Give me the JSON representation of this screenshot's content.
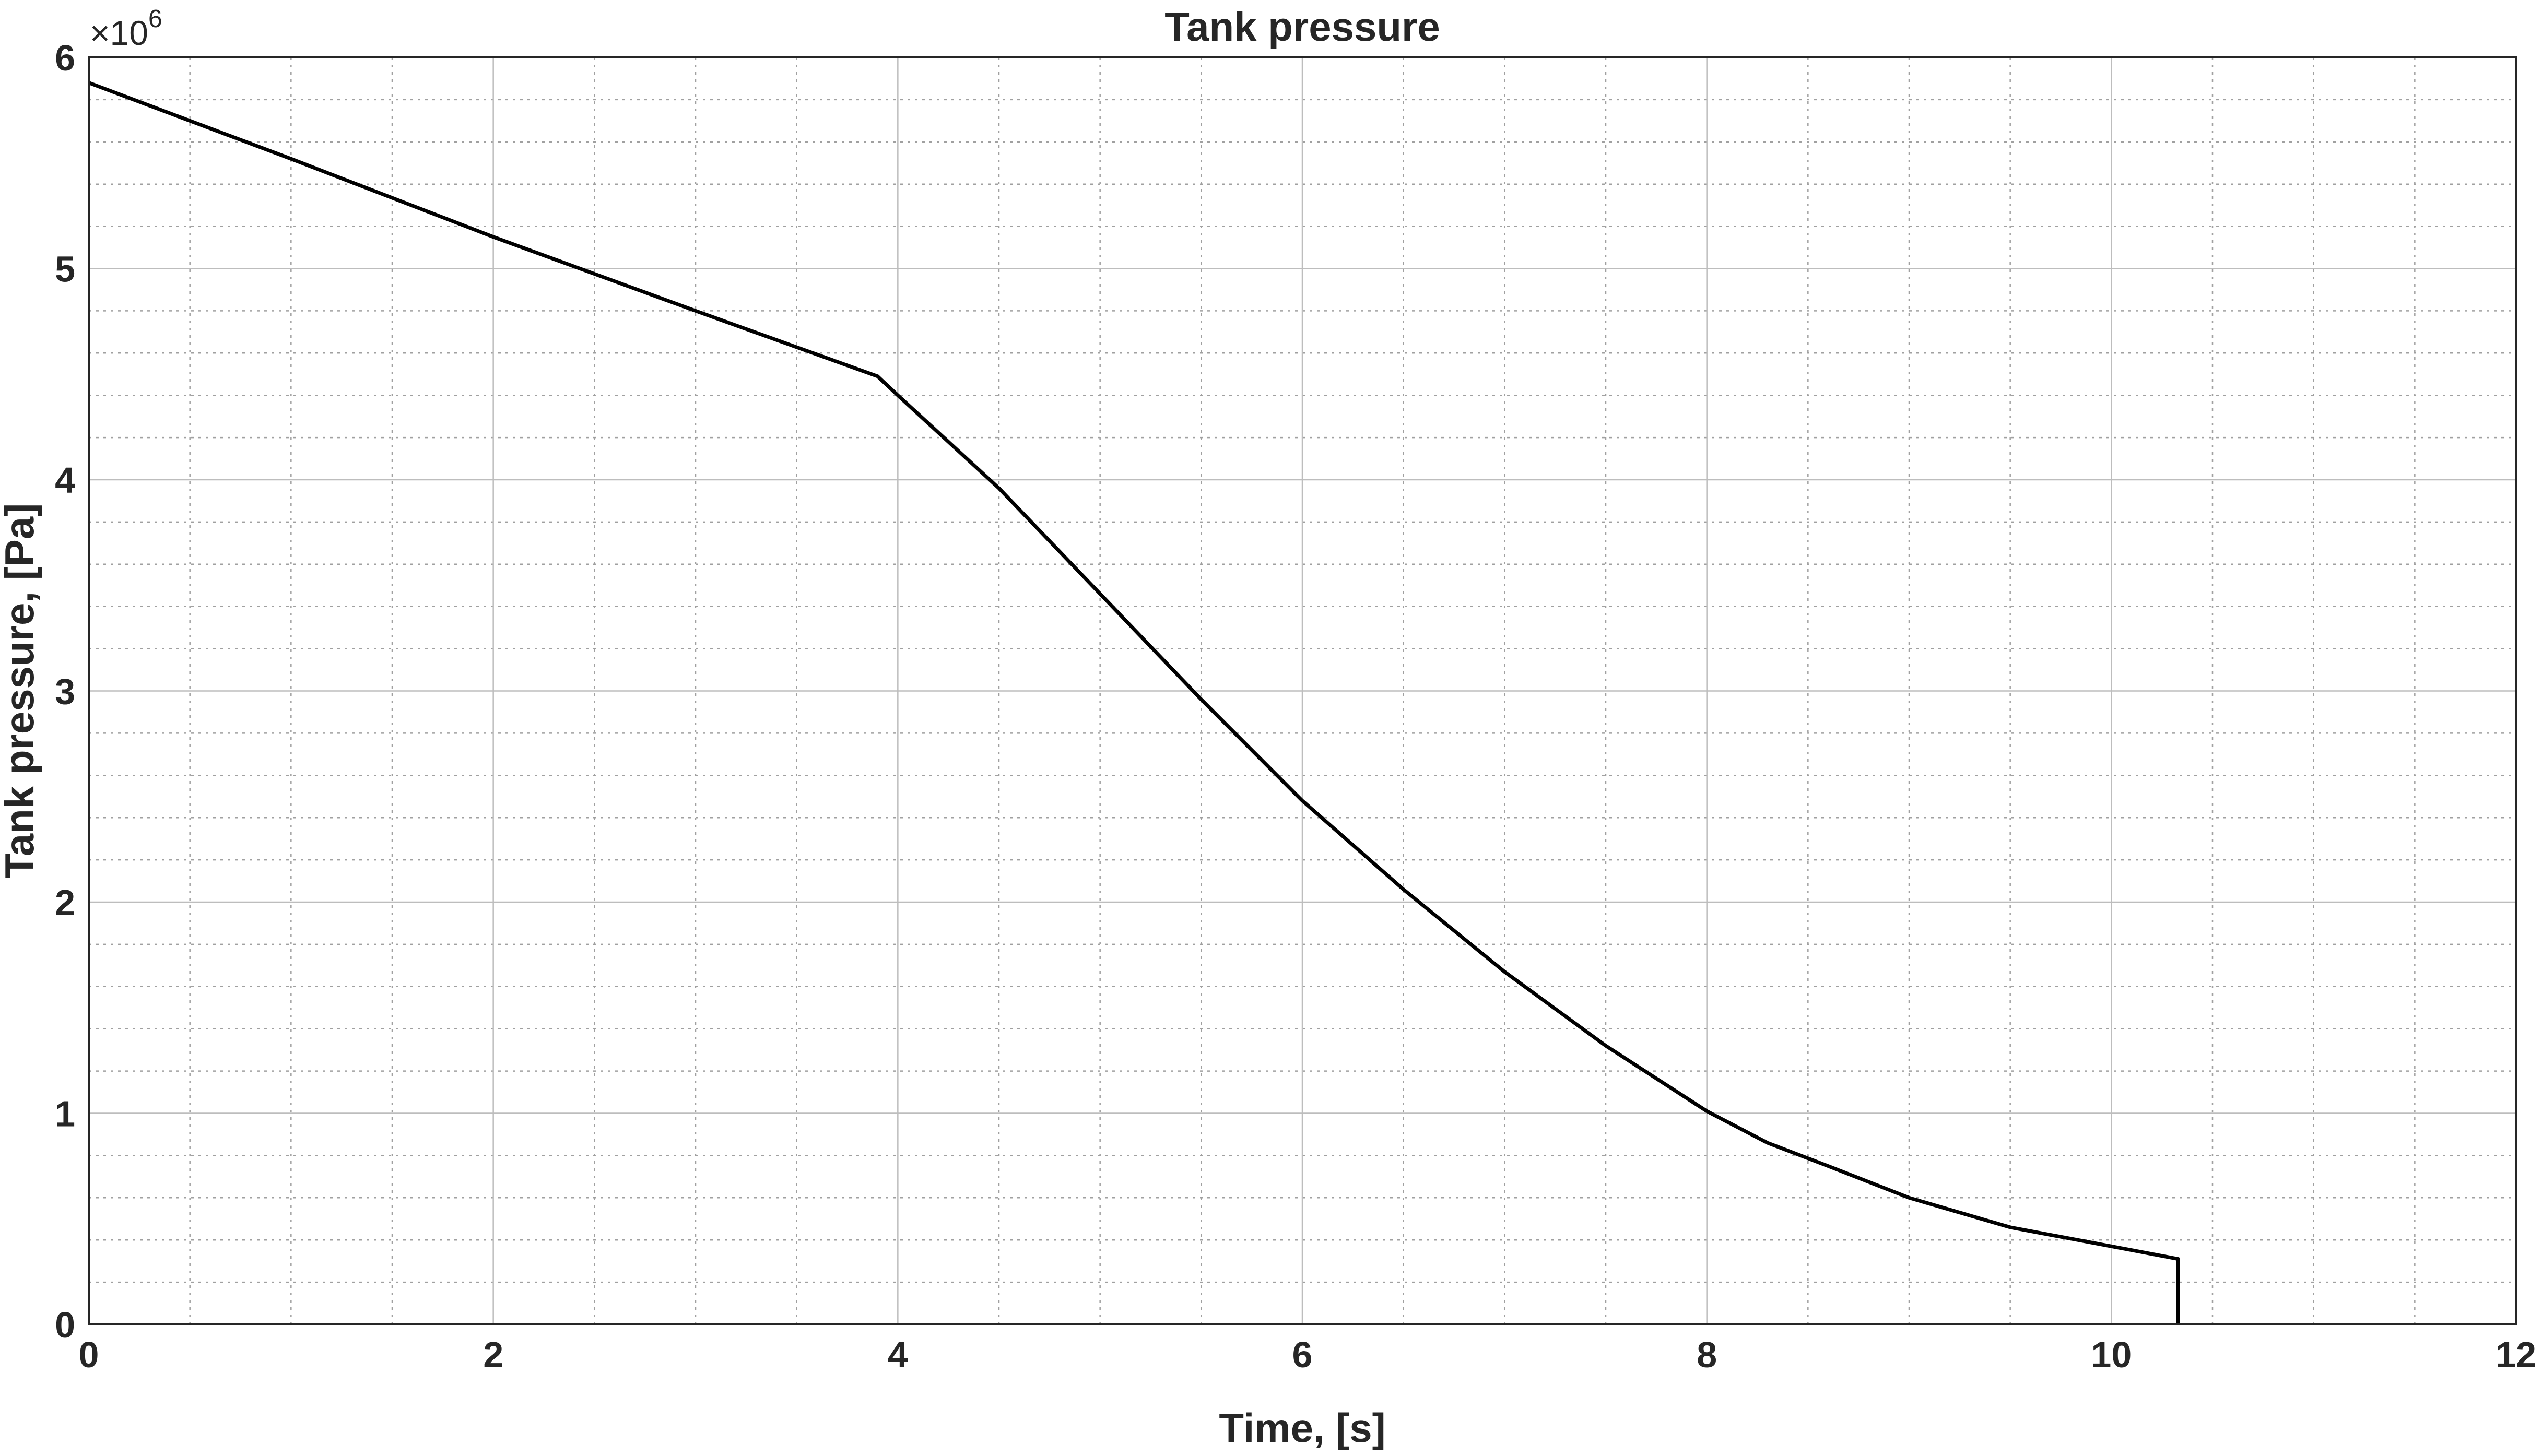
{
  "chart_data": {
    "type": "line",
    "title": "Tank pressure",
    "xlabel": "Time, [s]",
    "ylabel": "Tank pressure, [Pa]",
    "y_exponent": {
      "base": "10",
      "power": "6"
    },
    "xlim": [
      0,
      12
    ],
    "ylim": [
      0,
      6
    ],
    "x_ticks": [
      0,
      2,
      4,
      6,
      8,
      10,
      12
    ],
    "y_ticks": [
      0,
      1,
      2,
      3,
      4,
      5,
      6
    ],
    "x_tick_labels": [
      "0",
      "2",
      "4",
      "6",
      "8",
      "10",
      "12"
    ],
    "y_tick_labels": [
      "0",
      "1",
      "2",
      "3",
      "4",
      "5",
      "6"
    ],
    "grid": true,
    "minor_grid": true,
    "series": [
      {
        "color": "#000000",
        "x": [
          0,
          1,
          2,
          3,
          3.9,
          4.0,
          4.5,
          5.0,
          5.5,
          6.0,
          6.5,
          7.0,
          7.5,
          8.0,
          8.3,
          8.6,
          9.0,
          9.5,
          10.0,
          10.33,
          10.33
        ],
        "y": [
          5.88,
          5.52,
          5.15,
          4.8,
          4.49,
          4.4,
          3.96,
          3.46,
          2.96,
          2.48,
          2.06,
          1.67,
          1.32,
          1.01,
          0.86,
          0.75,
          0.6,
          0.46,
          0.37,
          0.31,
          0
        ]
      }
    ]
  }
}
